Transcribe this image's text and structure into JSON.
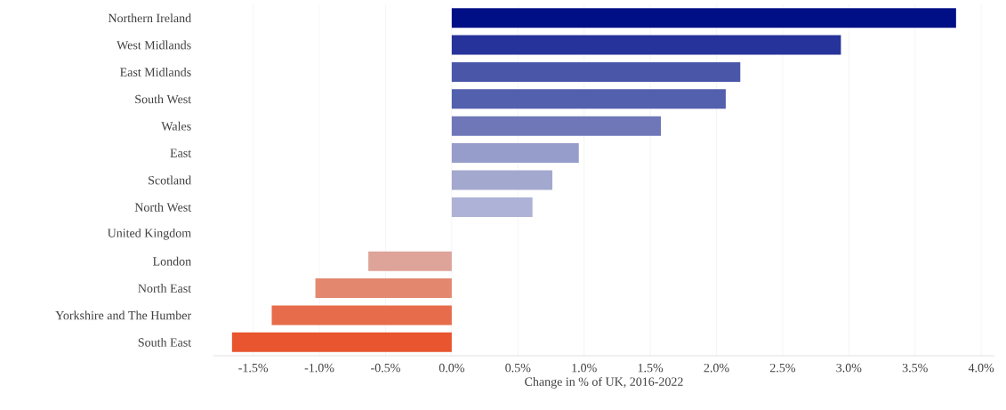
{
  "chart_data": {
    "type": "bar",
    "orientation": "horizontal",
    "xlabel": "Change in % of UK, 2016-2022",
    "categories": [
      "Northern Ireland",
      "West Midlands",
      "East Midlands",
      "South West",
      "Wales",
      "East",
      "Scotland",
      "North West",
      "United Kingdom",
      "London",
      "North East",
      "Yorkshire and The Humber",
      "South East"
    ],
    "values": [
      3.81,
      2.94,
      2.18,
      2.07,
      1.58,
      0.96,
      0.76,
      0.61,
      0,
      -0.63,
      -1.03,
      -1.36,
      -1.66
    ],
    "colors": [
      "#000f85",
      "#26339a",
      "#4a57a9",
      "#5360ad",
      "#6f77b9",
      "#979dca",
      "#a3a8cf",
      "#adb2d6",
      "#c8cce3",
      "#dea399",
      "#e3876f",
      "#e66c4c",
      "#e8552f"
    ],
    "xlim": [
      -1.8,
      4.1
    ],
    "xticks": [
      {
        "value": -1.5,
        "label": "-1.5%"
      },
      {
        "value": -1.0,
        "label": "-1.0%"
      },
      {
        "value": -0.5,
        "label": "-0.5%"
      },
      {
        "value": 0,
        "label": "0.0%"
      },
      {
        "value": 0.5,
        "label": "0.5%"
      },
      {
        "value": 1.0,
        "label": "1.0%"
      },
      {
        "value": 1.5,
        "label": "1.5%"
      },
      {
        "value": 2.0,
        "label": "2.0%"
      },
      {
        "value": 2.5,
        "label": "2.5%"
      },
      {
        "value": 3.0,
        "label": "3.0%"
      },
      {
        "value": 3.5,
        "label": "3.5%"
      },
      {
        "value": 4.0,
        "label": "4.0%"
      }
    ],
    "grid": "x"
  }
}
